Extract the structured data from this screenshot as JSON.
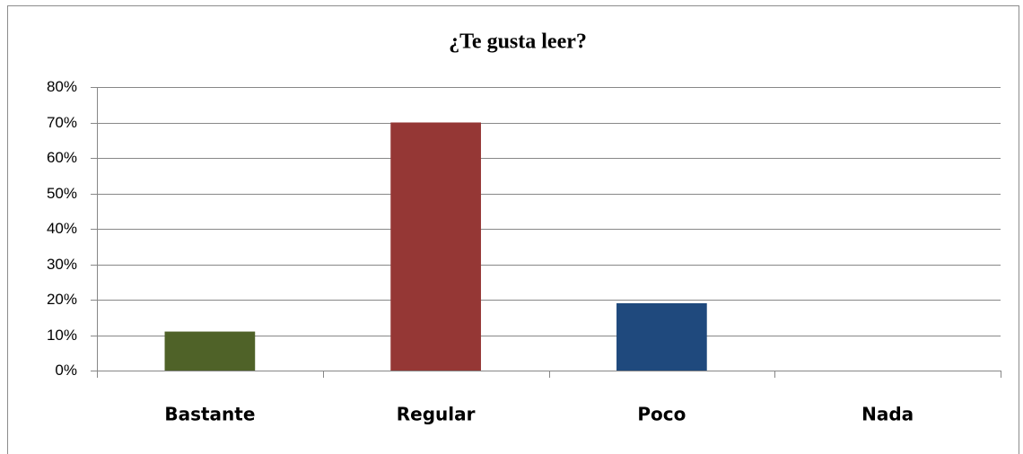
{
  "chart_data": {
    "type": "bar",
    "title": "¿Te gusta leer?",
    "categories": [
      "Bastante",
      "Regular",
      "Poco",
      "Nada"
    ],
    "values": [
      11,
      70,
      19,
      0
    ],
    "colors": [
      "#4f6228",
      "#953735",
      "#1f497d",
      "#e46c0a"
    ],
    "ylim": [
      0,
      80
    ],
    "yticks": [
      {
        "value": 0,
        "label": "0%"
      },
      {
        "value": 10,
        "label": "10%"
      },
      {
        "value": 20,
        "label": "20%"
      },
      {
        "value": 30,
        "label": "30%"
      },
      {
        "value": 40,
        "label": "40%"
      },
      {
        "value": 50,
        "label": "50%"
      },
      {
        "value": 60,
        "label": "60%"
      },
      {
        "value": 70,
        "label": "70%"
      },
      {
        "value": 80,
        "label": "80%"
      }
    ],
    "grid": true
  }
}
